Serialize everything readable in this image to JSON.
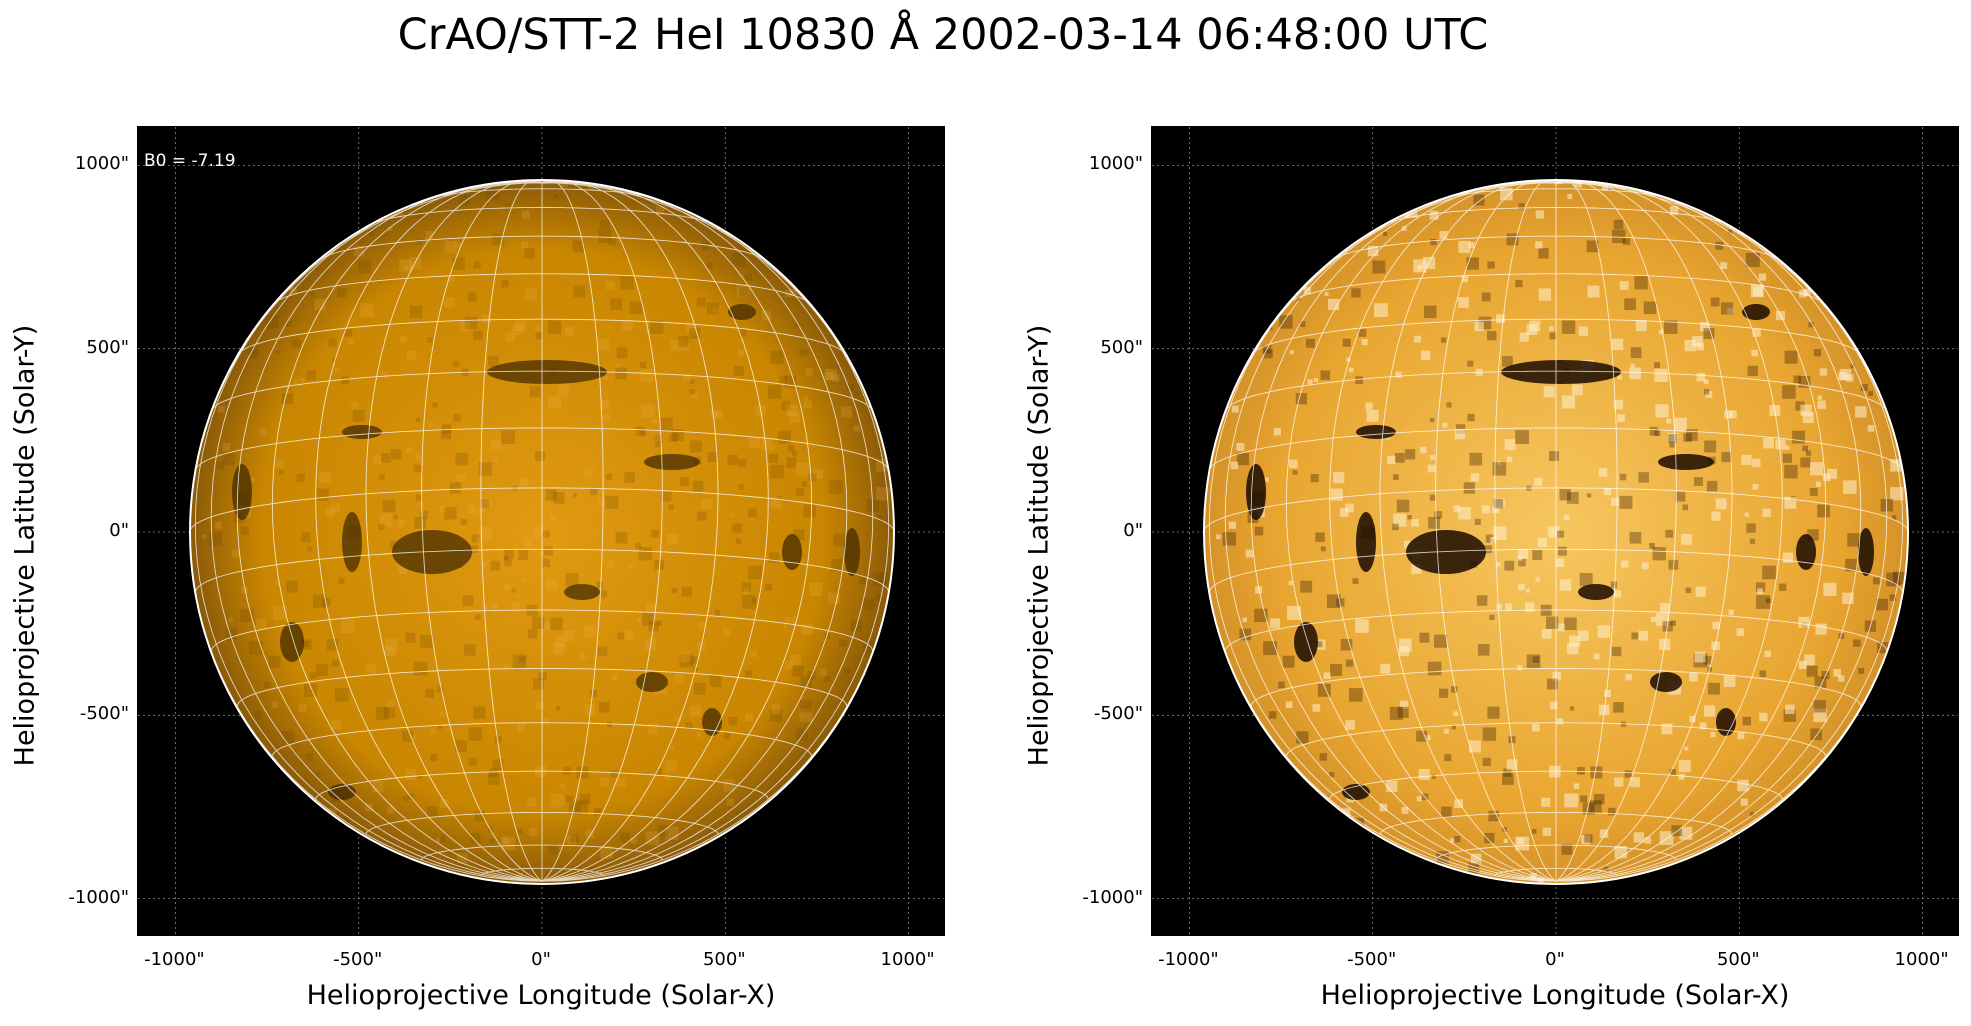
{
  "title": "CrAO/STT-2 HeI 10830 Å 2002-03-14 06:48:00 UTC",
  "colors": {
    "background": "#000000",
    "disk": "#d98e00",
    "grid": "#ffffff"
  },
  "panels": [
    {
      "annotation": "B0 = -7.19",
      "xlabel": "Helioprojective Longitude (Solar-X)",
      "ylabel": "Helioprojective Latitude (Solar-Y)",
      "xticks": [
        "-1000\"",
        "-500\"",
        "0\"",
        "500\"",
        "1000\""
      ],
      "yticks": [
        "1000\"",
        "500\"",
        "0\"",
        "-500\"",
        "-1000\""
      ],
      "contrast": "normal"
    },
    {
      "annotation": "",
      "xlabel": "Helioprojective Longitude (Solar-X)",
      "ylabel": "Helioprojective Latitude (Solar-Y)",
      "xticks": [
        "-1000\"",
        "-500\"",
        "0\"",
        "500\"",
        "1000\""
      ],
      "yticks": [
        "1000\"",
        "500\"",
        "0\"",
        "-500\"",
        "-1000\""
      ],
      "contrast": "enhanced"
    }
  ]
}
